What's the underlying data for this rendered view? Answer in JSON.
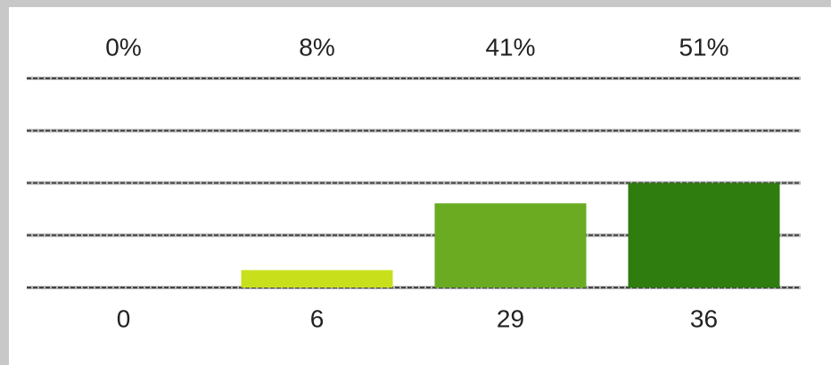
{
  "chart_data": {
    "type": "bar",
    "values": [
      0,
      6,
      29,
      36
    ],
    "shares": [
      0,
      8,
      41,
      51
    ],
    "share_labels": [
      "0%",
      "8%",
      "41%",
      "51%"
    ],
    "colors": [
      "#d4e61a",
      "#c8e01c",
      "#6aab22",
      "#2e7d0e"
    ],
    "ylim": [
      0,
      72
    ],
    "yticks": [
      0,
      18,
      36,
      54,
      72
    ],
    "grid": true
  }
}
